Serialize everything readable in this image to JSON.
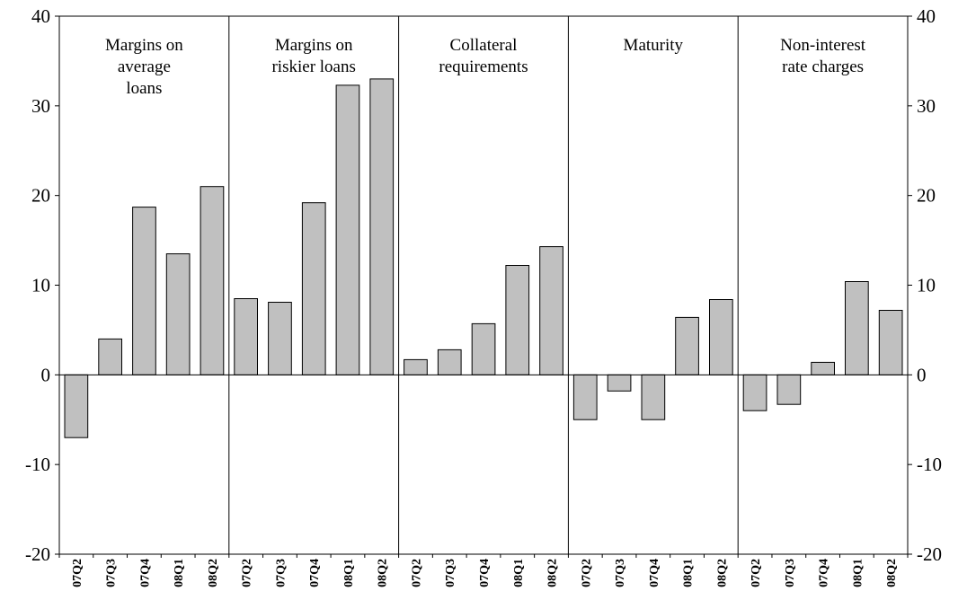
{
  "chart_data": {
    "type": "bar",
    "title": "",
    "xlabel": "",
    "ylabel": "",
    "ylim": [
      -20,
      40
    ],
    "yticks": [
      "-20",
      "-10",
      "0",
      "10",
      "20",
      "30",
      "40"
    ],
    "grid": false,
    "bar_color": "#c0c0c0",
    "categories": [
      "07Q2",
      "07Q3",
      "07Q4",
      "08Q1",
      "08Q2"
    ],
    "panels": [
      {
        "title": [
          "Margins on",
          "average",
          "loans"
        ],
        "values": [
          -7,
          4,
          18.7,
          13.5,
          21
        ]
      },
      {
        "title": [
          "Margins on",
          "riskier loans"
        ],
        "values": [
          8.5,
          8.1,
          19.2,
          32.3,
          33
        ]
      },
      {
        "title": [
          "Collateral",
          "requirements"
        ],
        "values": [
          1.7,
          2.8,
          5.7,
          12.2,
          14.3
        ]
      },
      {
        "title": [
          "Maturity"
        ],
        "values": [
          -5,
          -1.8,
          -5,
          6.4,
          8.4
        ]
      },
      {
        "title": [
          "Non-interest",
          "rate charges"
        ],
        "values": [
          -4,
          -3.3,
          1.4,
          10.4,
          7.2
        ]
      }
    ]
  }
}
